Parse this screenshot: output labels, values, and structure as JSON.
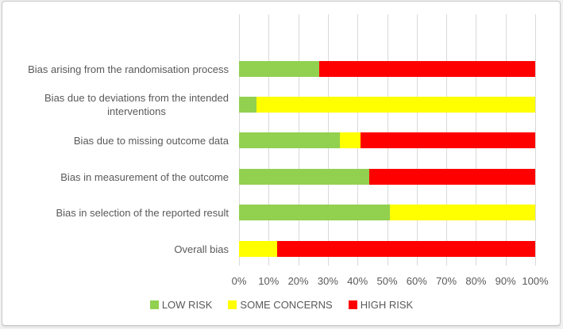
{
  "figure": {
    "background": "#ffffff",
    "border_color": "#c9c7c7",
    "text_color": "#595959"
  },
  "chart_data": {
    "type": "bar",
    "orientation": "horizontal",
    "stacked": true,
    "title": "",
    "xlabel": "",
    "ylabel": "",
    "xlim": [
      0,
      100
    ],
    "unit": "percent",
    "grid": "vertical",
    "gridline_color": "#d9d9d9",
    "legend_position": "bottom",
    "categories": [
      "Bias arising from the randomisation process",
      "Bias due to deviations from the intended\ninterventions",
      "Bias due to missing outcome data",
      "Bias in measurement of the outcome",
      "Bias in selection of the reported result",
      "Overall bias"
    ],
    "series": [
      {
        "name": "LOW RISK",
        "color": "#92d050",
        "values": [
          27,
          6,
          34,
          44,
          51,
          0
        ]
      },
      {
        "name": "SOME CONCERNS",
        "color": "#ffff00",
        "values": [
          0,
          94,
          7,
          0,
          49,
          13
        ]
      },
      {
        "name": "HIGH RISK",
        "color": "#ff0000",
        "values": [
          73,
          0,
          59,
          56,
          0,
          87
        ]
      }
    ],
    "x_axis": {
      "tick_labels": [
        "0%",
        "10%",
        "20%",
        "30%",
        "40%",
        "50%",
        "60%",
        "70%",
        "80%",
        "90%",
        "100%"
      ]
    },
    "legend_entries": [
      "LOW RISK",
      "SOME CONCERNS",
      "HIGH RISK"
    ]
  }
}
